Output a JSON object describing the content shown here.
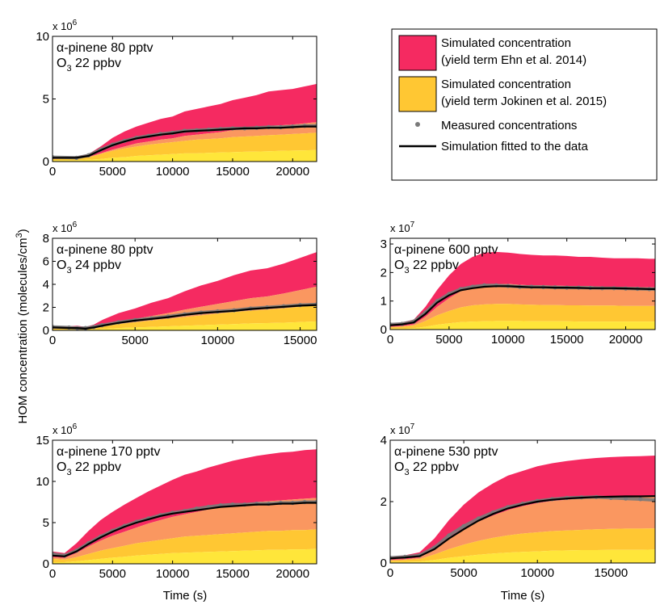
{
  "figure": {
    "ylabel": "HOM concentration (molecules/cm",
    "ylabel_sup": "3",
    "ylabel_end": ")",
    "xlabel": "Time (s)"
  },
  "legend": {
    "items": [
      {
        "lines": [
          "Simulated concentration",
          "(yield term Ehn et al. 2014)"
        ],
        "color": "#f52a61",
        "kind": "patch"
      },
      {
        "lines": [
          "Simulated concentration",
          "(yield term Jokinen et al. 2015)"
        ],
        "color": "#ffc733",
        "kind": "patch"
      },
      {
        "lines": [
          "Measured concentrations"
        ],
        "color": "#7a7a7a",
        "kind": "marker"
      },
      {
        "lines": [
          "Simulation fitted to the data"
        ],
        "color": "#000000",
        "kind": "line"
      }
    ]
  },
  "colors": {
    "ehn_band": "#f52a61",
    "overlap_band": "#fa9760",
    "jokinen_band": "#ffc733",
    "jokinen_inner": "#ffe63a",
    "measured": "#7a7a7a",
    "fit": "#000000"
  },
  "chart_data": [
    {
      "type": "area",
      "panel": "a",
      "annotation": [
        "α-pinene 80 pptv",
        "O",
        "3",
        " 22 ppbv"
      ],
      "scale_label": "x 10",
      "scale_exp": "6",
      "xlim": [
        0,
        22000
      ],
      "ylim": [
        0,
        10
      ],
      "xticks": [
        "0",
        "5000",
        "10000",
        "15000",
        "20000"
      ],
      "yticks": [
        "0",
        "5",
        "10"
      ],
      "show_xlabel": false,
      "t": [
        0,
        2000,
        3000,
        4000,
        5000,
        6000,
        7000,
        8000,
        9000,
        10000,
        11000,
        12000,
        13000,
        14000,
        15000,
        16000,
        17000,
        18000,
        19000,
        20000,
        21000,
        22000
      ],
      "ehn_upper": [
        0.3,
        0.4,
        0.6,
        1.2,
        1.9,
        2.4,
        2.8,
        3.1,
        3.4,
        3.6,
        4.0,
        4.2,
        4.4,
        4.6,
        4.9,
        5.1,
        5.3,
        5.6,
        5.7,
        5.8,
        6.0,
        6.2
      ],
      "ehn_lower": [
        0.2,
        0.2,
        0.35,
        0.65,
        0.95,
        1.2,
        1.45,
        1.6,
        1.75,
        1.85,
        2.05,
        2.15,
        2.25,
        2.35,
        2.5,
        2.6,
        2.7,
        2.85,
        2.9,
        2.95,
        3.05,
        3.15
      ],
      "jok_upper": [
        0.2,
        0.25,
        0.35,
        0.6,
        0.85,
        1.05,
        1.2,
        1.35,
        1.45,
        1.55,
        1.65,
        1.75,
        1.8,
        1.85,
        1.95,
        2.0,
        2.05,
        2.1,
        2.15,
        2.2,
        2.25,
        2.3
      ],
      "jok_lower": [
        0.1,
        0.1,
        0.15,
        0.2,
        0.3,
        0.35,
        0.45,
        0.5,
        0.55,
        0.6,
        0.65,
        0.65,
        0.7,
        0.72,
        0.75,
        0.78,
        0.8,
        0.82,
        0.85,
        0.88,
        0.9,
        0.92
      ],
      "fit": [
        0.3,
        0.3,
        0.45,
        0.9,
        1.3,
        1.6,
        1.85,
        2.0,
        2.15,
        2.25,
        2.4,
        2.45,
        2.5,
        2.55,
        2.6,
        2.65,
        2.65,
        2.7,
        2.7,
        2.75,
        2.8,
        2.8
      ],
      "measured": [
        0.35,
        0.3,
        0.5,
        0.95,
        1.35,
        1.65,
        1.9,
        2.05,
        2.2,
        2.3,
        2.45,
        2.5,
        2.55,
        2.6,
        2.65,
        2.65,
        2.7,
        2.75,
        2.75,
        2.8,
        2.85,
        2.85
      ]
    },
    {
      "type": "area",
      "panel": "b",
      "annotation": [
        "α-pinene 80 pptv",
        "O",
        "3",
        " 24 ppbv"
      ],
      "scale_label": "x 10",
      "scale_exp": "6",
      "xlim": [
        0,
        16000
      ],
      "ylim": [
        0,
        8
      ],
      "xticks": [
        "0",
        "5000",
        "10000",
        "15000"
      ],
      "yticks": [
        "0",
        "2",
        "4",
        "6",
        "8"
      ],
      "show_xlabel": false,
      "t": [
        0,
        1000,
        1500,
        2000,
        2500,
        3000,
        4000,
        5000,
        6000,
        7000,
        8000,
        9000,
        10000,
        11000,
        12000,
        13000,
        14000,
        15000,
        16000
      ],
      "ehn_upper": [
        0.3,
        0.35,
        0.4,
        0.3,
        0.5,
        0.9,
        1.5,
        1.9,
        2.4,
        2.8,
        3.4,
        3.9,
        4.3,
        4.8,
        5.2,
        5.4,
        5.8,
        6.3,
        6.8
      ],
      "ehn_lower": [
        0.15,
        0.2,
        0.2,
        0.15,
        0.25,
        0.45,
        0.75,
        1.0,
        1.25,
        1.5,
        1.8,
        2.05,
        2.3,
        2.55,
        2.8,
        2.95,
        3.2,
        3.5,
        3.8
      ],
      "jok_upper": [
        0.15,
        0.15,
        0.15,
        0.1,
        0.2,
        0.35,
        0.55,
        0.7,
        0.85,
        1.0,
        1.15,
        1.3,
        1.45,
        1.6,
        1.7,
        1.8,
        1.9,
        2.05,
        2.2
      ],
      "jok_lower": [
        0.05,
        0.05,
        0.05,
        0.05,
        0.08,
        0.12,
        0.2,
        0.25,
        0.3,
        0.35,
        0.4,
        0.45,
        0.5,
        0.55,
        0.6,
        0.63,
        0.67,
        0.72,
        0.78
      ],
      "fit": [
        0.25,
        0.2,
        0.2,
        0.15,
        0.25,
        0.4,
        0.65,
        0.85,
        1.0,
        1.15,
        1.35,
        1.5,
        1.6,
        1.7,
        1.85,
        1.95,
        2.05,
        2.15,
        2.2
      ],
      "measured": [
        0.3,
        0.25,
        0.2,
        0.2,
        0.3,
        0.45,
        0.7,
        0.9,
        1.05,
        1.2,
        1.4,
        1.55,
        1.65,
        1.75,
        1.9,
        2.0,
        2.1,
        2.2,
        2.25
      ]
    },
    {
      "type": "area",
      "panel": "c",
      "annotation": [
        "α-pinene 600 pptv",
        "O",
        "3",
        " 22 ppbv"
      ],
      "scale_label": "x 10",
      "scale_exp": "7",
      "xlim": [
        0,
        22500
      ],
      "ylim": [
        0,
        3.2
      ],
      "xticks": [
        "0",
        "5000",
        "10000",
        "15000",
        "20000"
      ],
      "yticks": [
        "0",
        "1",
        "2",
        "3"
      ],
      "show_xlabel": false,
      "t": [
        0,
        1000,
        2000,
        3000,
        4000,
        5000,
        6000,
        7000,
        8000,
        9000,
        10000,
        11000,
        12000,
        13000,
        14000,
        15000,
        16000,
        17000,
        18000,
        19000,
        20000,
        21000,
        22000,
        22500
      ],
      "ehn_upper": [
        0.2,
        0.25,
        0.35,
        0.8,
        1.4,
        1.9,
        2.3,
        2.55,
        2.7,
        2.72,
        2.7,
        2.65,
        2.62,
        2.6,
        2.6,
        2.58,
        2.55,
        2.55,
        2.52,
        2.5,
        2.5,
        2.5,
        2.48,
        2.48
      ],
      "ehn_lower": [
        0.1,
        0.12,
        0.18,
        0.45,
        0.8,
        1.1,
        1.35,
        1.5,
        1.58,
        1.6,
        1.6,
        1.57,
        1.55,
        1.55,
        1.54,
        1.53,
        1.52,
        1.52,
        1.5,
        1.5,
        1.49,
        1.49,
        1.48,
        1.48
      ],
      "jok_upper": [
        0.08,
        0.1,
        0.14,
        0.3,
        0.5,
        0.65,
        0.78,
        0.85,
        0.88,
        0.9,
        0.9,
        0.88,
        0.87,
        0.86,
        0.86,
        0.85,
        0.85,
        0.84,
        0.84,
        0.84,
        0.83,
        0.83,
        0.83,
        0.83
      ],
      "jok_lower": [
        0.03,
        0.04,
        0.05,
        0.1,
        0.17,
        0.22,
        0.26,
        0.28,
        0.29,
        0.3,
        0.3,
        0.3,
        0.29,
        0.29,
        0.29,
        0.29,
        0.28,
        0.28,
        0.28,
        0.28,
        0.28,
        0.28,
        0.28,
        0.28
      ],
      "fit": [
        0.15,
        0.18,
        0.25,
        0.55,
        0.95,
        1.2,
        1.38,
        1.45,
        1.5,
        1.52,
        1.52,
        1.5,
        1.48,
        1.48,
        1.47,
        1.47,
        1.46,
        1.45,
        1.45,
        1.45,
        1.44,
        1.43,
        1.42,
        1.42
      ],
      "measured": [
        0.18,
        0.2,
        0.28,
        0.6,
        1.0,
        1.25,
        1.42,
        1.5,
        1.55,
        1.55,
        1.53,
        1.5,
        1.5,
        1.49,
        1.48,
        1.47,
        1.47,
        1.46,
        1.45,
        1.45,
        1.44,
        1.43,
        1.42,
        1.42
      ]
    },
    {
      "type": "area",
      "panel": "d",
      "annotation": [
        "α-pinene 170 pptv",
        "O",
        "3",
        " 22 ppbv"
      ],
      "scale_label": "x 10",
      "scale_exp": "6",
      "xlim": [
        0,
        22000
      ],
      "ylim": [
        0,
        15
      ],
      "xticks": [
        "0",
        "5000",
        "10000",
        "15000",
        "20000"
      ],
      "yticks": [
        "0",
        "5",
        "10",
        "15"
      ],
      "show_xlabel": true,
      "t": [
        0,
        1000,
        2000,
        3000,
        4000,
        5000,
        6000,
        7000,
        8000,
        9000,
        10000,
        11000,
        12000,
        13000,
        14000,
        15000,
        16000,
        17000,
        18000,
        19000,
        20000,
        21000,
        22000
      ],
      "ehn_upper": [
        1.5,
        1.3,
        2.5,
        4.0,
        5.3,
        6.3,
        7.2,
        8.0,
        8.8,
        9.5,
        10.2,
        10.8,
        11.2,
        11.7,
        12.1,
        12.5,
        12.8,
        13.1,
        13.3,
        13.5,
        13.6,
        13.8,
        13.9
      ],
      "ehn_lower": [
        0.8,
        0.7,
        1.3,
        2.1,
        2.8,
        3.4,
        3.9,
        4.4,
        4.9,
        5.3,
        5.7,
        6.0,
        6.3,
        6.6,
        6.9,
        7.1,
        7.3,
        7.5,
        7.6,
        7.7,
        7.8,
        7.9,
        8.0
      ],
      "jok_upper": [
        0.6,
        0.5,
        0.8,
        1.2,
        1.6,
        1.9,
        2.2,
        2.5,
        2.7,
        2.9,
        3.1,
        3.3,
        3.4,
        3.5,
        3.6,
        3.7,
        3.8,
        3.9,
        4.0,
        4.0,
        4.1,
        4.1,
        4.2
      ],
      "jok_lower": [
        0.2,
        0.2,
        0.3,
        0.45,
        0.6,
        0.75,
        0.85,
        1.0,
        1.1,
        1.2,
        1.3,
        1.35,
        1.4,
        1.45,
        1.5,
        1.55,
        1.6,
        1.65,
        1.7,
        1.7,
        1.75,
        1.75,
        1.8
      ],
      "fit": [
        1.0,
        0.9,
        1.5,
        2.4,
        3.2,
        3.9,
        4.5,
        5.0,
        5.4,
        5.8,
        6.1,
        6.3,
        6.5,
        6.7,
        6.9,
        7.0,
        7.1,
        7.2,
        7.2,
        7.3,
        7.3,
        7.4,
        7.4
      ],
      "measured": [
        1.2,
        1.0,
        1.6,
        2.5,
        3.3,
        4.0,
        4.6,
        5.1,
        5.5,
        5.9,
        6.2,
        6.4,
        6.7,
        6.9,
        7.1,
        7.2,
        7.2,
        7.3,
        7.3,
        7.4,
        7.4,
        7.5,
        7.5
      ]
    },
    {
      "type": "area",
      "panel": "e",
      "annotation": [
        "α-pinene 530 pptv",
        "O",
        "3",
        " 22 ppbv"
      ],
      "scale_label": "x 10",
      "scale_exp": "7",
      "xlim": [
        0,
        18000
      ],
      "ylim": [
        0,
        4
      ],
      "xticks": [
        "0",
        "5000",
        "10000",
        "15000"
      ],
      "yticks": [
        "0",
        "2",
        "4"
      ],
      "show_xlabel": true,
      "t": [
        0,
        1000,
        2000,
        3000,
        4000,
        5000,
        6000,
        7000,
        8000,
        9000,
        10000,
        11000,
        12000,
        13000,
        14000,
        15000,
        16000,
        17000,
        18000
      ],
      "ehn_upper": [
        0.2,
        0.25,
        0.35,
        0.8,
        1.4,
        1.9,
        2.3,
        2.6,
        2.85,
        3.0,
        3.15,
        3.25,
        3.32,
        3.38,
        3.42,
        3.45,
        3.47,
        3.48,
        3.5
      ],
      "ehn_lower": [
        0.1,
        0.12,
        0.18,
        0.45,
        0.8,
        1.1,
        1.35,
        1.55,
        1.72,
        1.85,
        1.95,
        2.02,
        2.06,
        2.1,
        2.12,
        2.14,
        2.15,
        2.16,
        2.17
      ],
      "jok_upper": [
        0.08,
        0.1,
        0.13,
        0.28,
        0.45,
        0.6,
        0.72,
        0.82,
        0.9,
        0.96,
        1.0,
        1.04,
        1.06,
        1.08,
        1.1,
        1.11,
        1.12,
        1.12,
        1.13
      ],
      "jok_lower": [
        0.03,
        0.04,
        0.05,
        0.1,
        0.17,
        0.22,
        0.27,
        0.31,
        0.34,
        0.36,
        0.38,
        0.4,
        0.41,
        0.42,
        0.42,
        0.43,
        0.43,
        0.43,
        0.44
      ],
      "fit": [
        0.15,
        0.18,
        0.22,
        0.45,
        0.8,
        1.1,
        1.38,
        1.6,
        1.78,
        1.9,
        2.0,
        2.06,
        2.1,
        2.13,
        2.15,
        2.16,
        2.17,
        2.17,
        2.18
      ],
      "measured": [
        0.17,
        0.2,
        0.25,
        0.5,
        0.9,
        1.2,
        1.45,
        1.65,
        1.82,
        1.93,
        2.02,
        2.08,
        2.12,
        2.14,
        2.15,
        2.12,
        2.1,
        2.08,
        2.05
      ]
    }
  ]
}
